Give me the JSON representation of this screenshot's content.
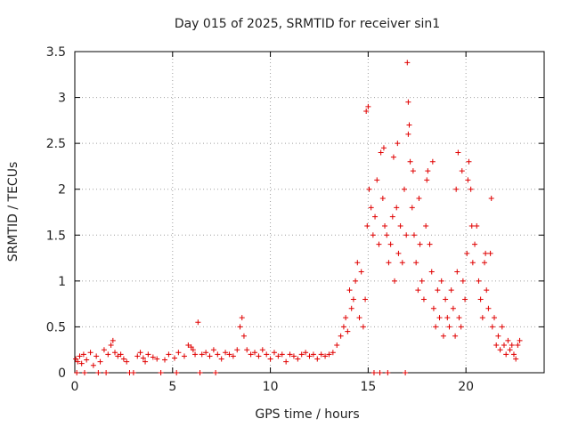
{
  "chart_data": {
    "type": "scatter",
    "title": "Day 015 of 2025, SRMTID for receiver sin1",
    "xlabel": "GPS time / hours",
    "ylabel": "SRMTID / TECUs",
    "xlim": [
      0,
      24
    ],
    "ylim": [
      0,
      3.5
    ],
    "xticks": [
      0,
      5,
      10,
      15,
      20
    ],
    "yticks": [
      0,
      0.5,
      1,
      1.5,
      2,
      2.5,
      3,
      3.5
    ],
    "ytick_labels": [
      "0",
      "0.5",
      "1",
      "1.5",
      "2",
      "2.5",
      "3",
      "3.5"
    ],
    "grid": true,
    "marker": "+",
    "color": "#e00000",
    "series": [
      {
        "name": "SRMTID",
        "x": [
          0.05,
          0.15,
          0.25,
          0.35,
          0.45,
          0.6,
          0.8,
          0.95,
          1.1,
          1.3,
          1.5,
          1.7,
          1.85,
          1.95,
          2.05,
          2.2,
          2.35,
          2.5,
          2.65,
          3.2,
          3.35,
          3.5,
          3.6,
          3.75,
          4.0,
          4.2,
          4.6,
          4.8,
          5.1,
          5.3,
          5.6,
          5.8,
          5.95,
          6.05,
          6.15,
          6.3,
          6.5,
          6.7,
          6.9,
          7.1,
          7.3,
          7.5,
          7.7,
          7.9,
          8.1,
          8.3,
          8.45,
          8.55,
          8.65,
          8.8,
          9.0,
          9.2,
          9.4,
          9.6,
          9.8,
          10.0,
          10.2,
          10.4,
          10.6,
          10.8,
          11.0,
          11.2,
          11.4,
          11.6,
          11.8,
          12.0,
          12.2,
          12.4,
          12.6,
          12.8,
          13.0,
          13.2,
          13.4,
          13.6,
          13.75,
          13.85,
          13.95,
          14.05,
          14.15,
          14.25,
          14.35,
          14.45,
          14.55,
          14.65,
          14.75,
          14.85,
          14.95,
          15.05,
          15.15,
          15.25,
          15.35,
          15.45,
          15.55,
          15.65,
          15.75,
          15.85,
          15.95,
          16.05,
          16.15,
          16.25,
          16.35,
          16.45,
          16.55,
          16.65,
          16.75,
          16.85,
          16.95,
          17.05,
          17.15,
          17.25,
          17.35,
          17.45,
          17.55,
          17.65,
          17.75,
          17.85,
          17.95,
          18.05,
          18.15,
          18.25,
          18.35,
          18.45,
          18.55,
          18.65,
          18.75,
          18.85,
          18.95,
          19.05,
          19.15,
          19.25,
          19.35,
          19.45,
          19.55,
          19.65,
          19.75,
          19.85,
          19.95,
          20.05,
          20.15,
          20.25,
          20.35,
          20.45,
          20.55,
          20.65,
          20.75,
          20.85,
          20.95,
          21.05,
          21.15,
          21.25,
          21.35,
          21.45,
          21.55,
          21.65,
          21.75,
          21.85,
          21.95,
          22.05,
          22.15,
          22.25,
          22.35,
          22.45,
          22.55,
          22.65,
          22.75,
          0.1,
          0.5,
          1.2,
          1.6,
          2.8,
          3.0,
          4.4,
          5.2,
          6.4,
          7.2,
          15.3,
          15.6,
          16.0,
          16.9,
          17.0,
          17.05,
          17.1,
          15.0,
          14.9,
          15.8,
          16.3,
          16.5,
          17.3,
          17.6,
          18.0,
          18.3,
          19.5,
          19.6,
          19.8,
          20.1,
          20.3,
          21.0,
          21.3
        ],
        "y": [
          0.15,
          0.12,
          0.18,
          0.1,
          0.2,
          0.14,
          0.22,
          0.08,
          0.18,
          0.12,
          0.25,
          0.2,
          0.3,
          0.35,
          0.22,
          0.18,
          0.2,
          0.15,
          0.12,
          0.18,
          0.22,
          0.16,
          0.12,
          0.2,
          0.17,
          0.15,
          0.14,
          0.2,
          0.16,
          0.22,
          0.18,
          0.3,
          0.28,
          0.25,
          0.2,
          0.55,
          0.2,
          0.22,
          0.18,
          0.25,
          0.2,
          0.15,
          0.22,
          0.2,
          0.18,
          0.25,
          0.5,
          0.6,
          0.4,
          0.25,
          0.2,
          0.22,
          0.18,
          0.25,
          0.2,
          0.15,
          0.22,
          0.18,
          0.2,
          0.12,
          0.2,
          0.18,
          0.15,
          0.2,
          0.22,
          0.18,
          0.2,
          0.15,
          0.2,
          0.18,
          0.2,
          0.22,
          0.3,
          0.4,
          0.5,
          0.6,
          0.45,
          0.9,
          0.7,
          0.8,
          1.0,
          1.2,
          0.6,
          1.1,
          0.5,
          0.8,
          1.6,
          2.0,
          1.8,
          1.5,
          1.7,
          2.1,
          1.4,
          2.4,
          1.9,
          1.6,
          1.5,
          1.2,
          1.4,
          1.7,
          1.0,
          1.8,
          1.3,
          1.6,
          1.2,
          2.0,
          1.5,
          2.6,
          2.3,
          1.8,
          1.5,
          1.2,
          0.9,
          1.4,
          1.0,
          0.8,
          1.6,
          2.2,
          1.4,
          1.1,
          0.7,
          0.5,
          0.9,
          0.6,
          1.0,
          0.4,
          0.8,
          0.6,
          0.5,
          0.9,
          0.7,
          0.4,
          1.1,
          0.6,
          0.5,
          1.0,
          0.8,
          1.3,
          2.3,
          2.0,
          1.2,
          1.4,
          1.6,
          1.0,
          0.8,
          0.6,
          1.2,
          0.9,
          0.7,
          1.3,
          0.5,
          0.6,
          0.3,
          0.4,
          0.25,
          0.5,
          0.3,
          0.2,
          0.35,
          0.25,
          0.3,
          0.2,
          0.15,
          0.3,
          0.35,
          0.0,
          0.0,
          0.0,
          0.0,
          0.0,
          0.0,
          0.0,
          0.0,
          0.0,
          0.0,
          0.0,
          0.0,
          0.0,
          0.0,
          3.38,
          2.95,
          2.7,
          2.9,
          2.85,
          2.45,
          2.35,
          2.5,
          2.2,
          1.9,
          2.1,
          2.3,
          2.0,
          2.4,
          2.2,
          2.1,
          1.6,
          1.3,
          1.9
        ]
      }
    ]
  }
}
